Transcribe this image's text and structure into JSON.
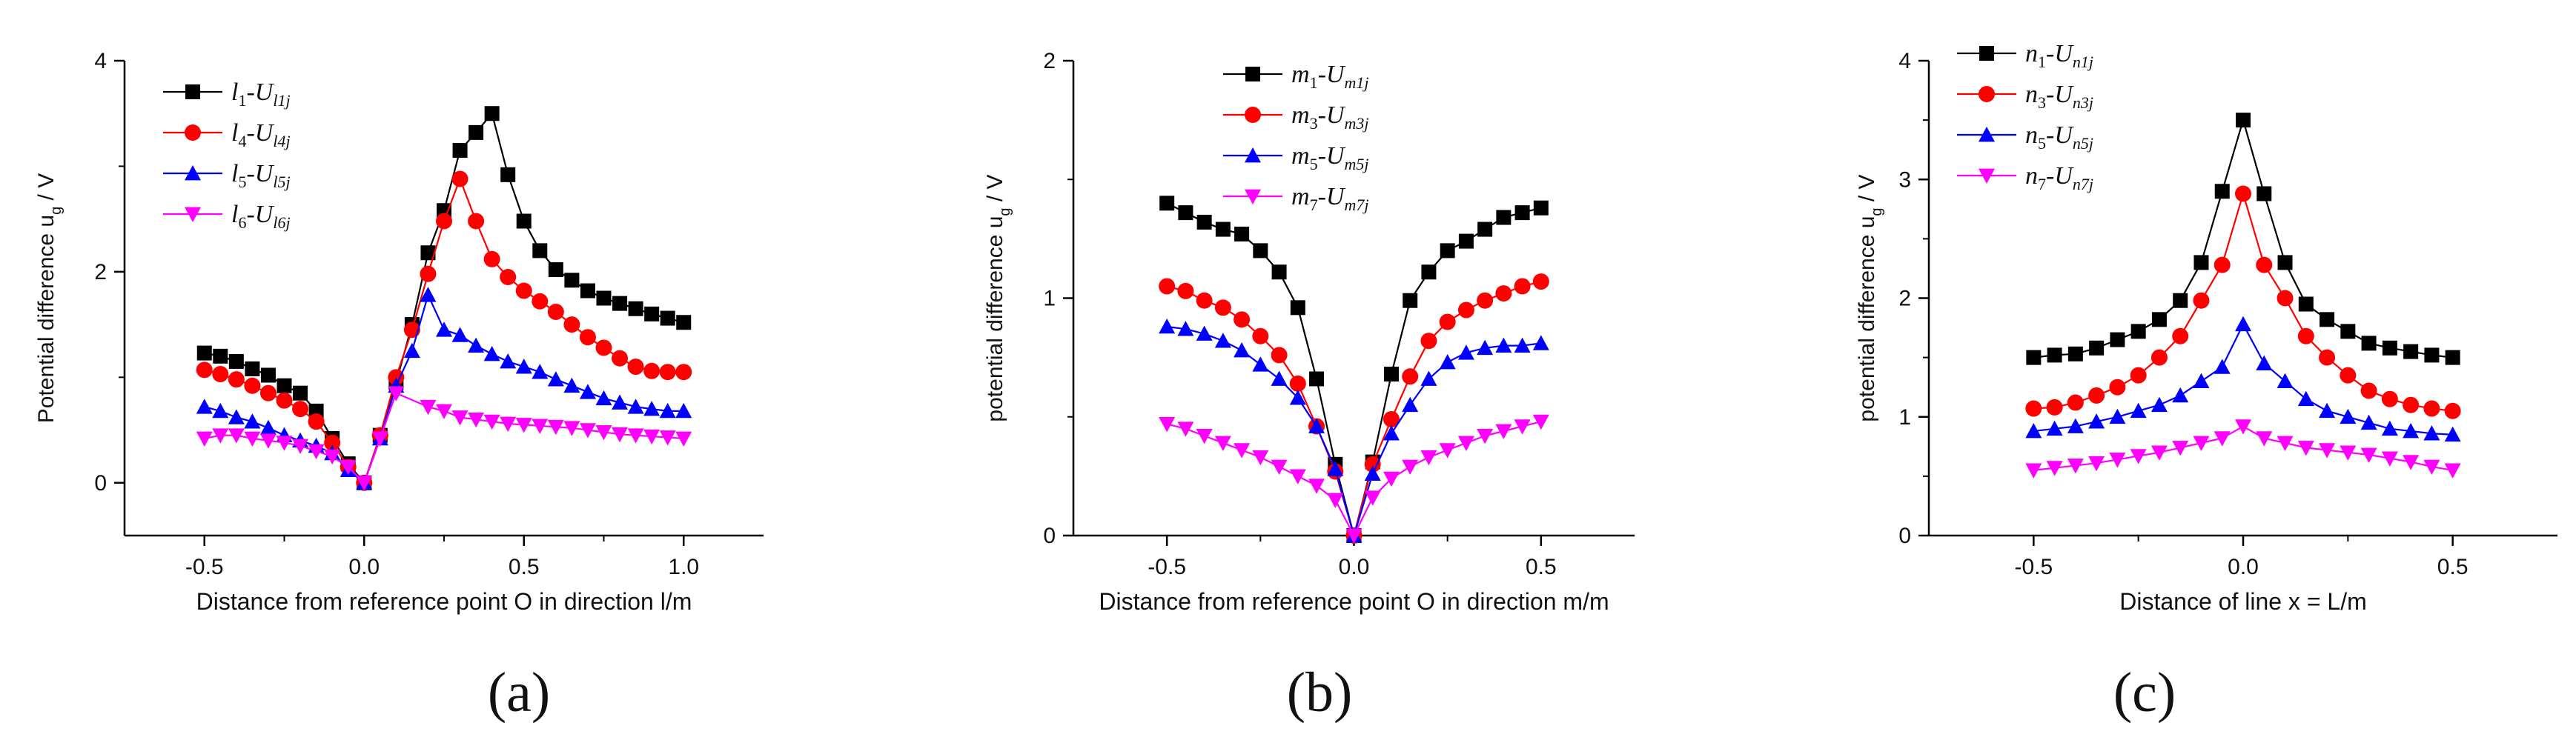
{
  "colors": {
    "black": "#000000",
    "red": "#ff0000",
    "blue": "#0000ff",
    "magenta": "#ff00ff"
  },
  "chart_data": [
    {
      "type": "line",
      "panel_label": "(a)",
      "xlabel": "Distance from reference point O in direction l/m",
      "ylabel": "Potential difference u",
      "ylabel_sub": "g",
      "ylabel_unit": " / V",
      "xlim": [
        -0.75,
        1.25
      ],
      "ylim": [
        -0.5,
        4
      ],
      "xticks": [
        -0.5,
        0.0,
        0.5,
        1.0
      ],
      "xtick_labels": [
        "-0.5",
        "0.0",
        "0.5",
        "1.0"
      ],
      "yticks": [
        0,
        2,
        4
      ],
      "ytick_labels": [
        "0",
        "2",
        "4"
      ],
      "x": [
        -0.5,
        -0.45,
        -0.4,
        -0.35,
        -0.3,
        -0.25,
        -0.2,
        -0.15,
        -0.1,
        -0.05,
        0.0,
        0.05,
        0.1,
        0.15,
        0.2,
        0.25,
        0.3,
        0.35,
        0.4,
        0.45,
        0.5,
        0.55,
        0.6,
        0.65,
        0.7,
        0.75,
        0.8,
        0.85,
        0.9,
        0.95,
        1.0
      ],
      "series": [
        {
          "name": "l1-Ul1j",
          "legend_main": "l",
          "legend_sub1": "1",
          "legend_mid": "-U",
          "legend_sub2": "l1j",
          "color": "black",
          "marker": "square",
          "values": [
            1.23,
            1.2,
            1.15,
            1.08,
            1.02,
            0.92,
            0.85,
            0.68,
            0.42,
            0.18,
            0.0,
            0.45,
            0.95,
            1.5,
            2.18,
            2.58,
            3.15,
            3.32,
            3.5,
            2.92,
            2.48,
            2.2,
            2.02,
            1.92,
            1.82,
            1.75,
            1.7,
            1.65,
            1.6,
            1.56,
            1.52
          ]
        },
        {
          "name": "l4-Ul4j",
          "legend_main": "l",
          "legend_sub1": "4",
          "legend_mid": "-U",
          "legend_sub2": "l4j",
          "color": "red",
          "marker": "circle",
          "values": [
            1.07,
            1.03,
            0.98,
            0.92,
            0.85,
            0.78,
            0.7,
            0.58,
            0.38,
            0.15,
            0.0,
            0.45,
            1.0,
            1.45,
            1.98,
            2.48,
            2.88,
            2.48,
            2.12,
            1.95,
            1.82,
            1.72,
            1.62,
            1.5,
            1.38,
            1.28,
            1.18,
            1.1,
            1.06,
            1.05,
            1.05
          ]
        },
        {
          "name": "l5-Ul5j",
          "legend_main": "l",
          "legend_sub1": "5",
          "legend_mid": "-U",
          "legend_sub2": "l5j",
          "color": "blue",
          "marker": "triangle-up",
          "values": [
            0.72,
            0.68,
            0.62,
            0.58,
            0.52,
            0.45,
            0.4,
            0.35,
            0.28,
            0.12,
            0.0,
            0.42,
            0.92,
            1.25,
            1.78,
            1.45,
            1.4,
            1.3,
            1.22,
            1.15,
            1.1,
            1.05,
            0.98,
            0.92,
            0.86,
            0.8,
            0.76,
            0.72,
            0.7,
            0.68,
            0.68
          ]
        },
        {
          "name": "l6-Ul6j",
          "legend_main": "l",
          "legend_sub1": "6",
          "legend_mid": "-U",
          "legend_sub2": "l6j",
          "color": "magenta",
          "marker": "triangle-down",
          "values": [
            0.42,
            0.45,
            0.45,
            0.42,
            0.4,
            0.38,
            0.35,
            0.3,
            0.25,
            0.15,
            0.0,
            0.42,
            0.85,
            null,
            0.72,
            0.68,
            0.62,
            0.6,
            0.58,
            0.56,
            0.55,
            0.54,
            0.53,
            0.52,
            0.5,
            0.48,
            0.46,
            0.45,
            0.44,
            0.43,
            0.42
          ]
        }
      ]
    },
    {
      "type": "line",
      "panel_label": "(b)",
      "xlabel": "Distance from reference point O in direction m/m",
      "ylabel": "potential difference u",
      "ylabel_sub": "g",
      "ylabel_unit": " / V",
      "xlim": [
        -0.75,
        0.75
      ],
      "ylim": [
        0,
        2
      ],
      "xticks": [
        -0.5,
        0.0,
        0.5
      ],
      "xtick_labels": [
        "-0.5",
        "0.0",
        "0.5"
      ],
      "yticks": [
        0,
        1,
        2
      ],
      "ytick_labels": [
        "0",
        "1",
        "2"
      ],
      "x": [
        -0.5,
        -0.45,
        -0.4,
        -0.35,
        -0.3,
        -0.25,
        -0.2,
        -0.15,
        -0.1,
        -0.05,
        0.0,
        0.05,
        0.1,
        0.15,
        0.2,
        0.25,
        0.3,
        0.35,
        0.4,
        0.45,
        0.5
      ],
      "series": [
        {
          "name": "m1-Um1j",
          "legend_main": "m",
          "legend_sub1": "1",
          "legend_mid": "-U",
          "legend_sub2": "m1j",
          "color": "black",
          "marker": "square",
          "values": [
            1.4,
            1.36,
            1.32,
            1.29,
            1.27,
            1.2,
            1.11,
            0.96,
            0.66,
            0.3,
            0.0,
            0.31,
            0.68,
            0.99,
            1.11,
            1.2,
            1.24,
            1.29,
            1.34,
            1.36,
            1.38
          ]
        },
        {
          "name": "m3-Um3j",
          "legend_main": "m",
          "legend_sub1": "3",
          "legend_mid": "-U",
          "legend_sub2": "m3j",
          "color": "red",
          "marker": "circle",
          "values": [
            1.05,
            1.03,
            0.99,
            0.96,
            0.91,
            0.84,
            0.76,
            0.64,
            0.46,
            0.27,
            0.0,
            0.3,
            0.49,
            0.67,
            0.82,
            0.9,
            0.95,
            0.99,
            1.02,
            1.05,
            1.07
          ]
        },
        {
          "name": "m5-Um5j",
          "legend_main": "m",
          "legend_sub1": "5",
          "legend_mid": "-U",
          "legend_sub2": "m5j",
          "color": "blue",
          "marker": "triangle-up",
          "values": [
            0.88,
            0.87,
            0.85,
            0.82,
            0.78,
            0.72,
            0.66,
            0.58,
            0.46,
            0.28,
            0.0,
            0.26,
            0.43,
            0.55,
            0.66,
            0.73,
            0.77,
            0.79,
            0.8,
            0.8,
            0.81
          ]
        },
        {
          "name": "m7-Um7j",
          "legend_main": "m",
          "legend_sub1": "7",
          "legend_mid": "-U",
          "legend_sub2": "m7j",
          "color": "magenta",
          "marker": "triangle-down",
          "values": [
            0.47,
            0.45,
            0.42,
            0.39,
            0.36,
            0.33,
            0.29,
            0.25,
            0.21,
            0.15,
            0.0,
            0.16,
            0.24,
            0.29,
            0.33,
            0.36,
            0.39,
            0.42,
            0.44,
            0.46,
            0.48
          ]
        }
      ]
    },
    {
      "type": "line",
      "panel_label": "(c)",
      "xlabel": "Distance of line x = L/m",
      "ylabel": "potential difference u",
      "ylabel_sub": "g",
      "ylabel_unit": " / V",
      "xlim": [
        -0.75,
        0.75
      ],
      "ylim": [
        0,
        4
      ],
      "xticks": [
        -0.5,
        0.0,
        0.5
      ],
      "xtick_labels": [
        "-0.5",
        "0.0",
        "0.5"
      ],
      "yticks": [
        0,
        1,
        2,
        3,
        4
      ],
      "ytick_labels": [
        "0",
        "1",
        "2",
        "3",
        "4"
      ],
      "x": [
        -0.5,
        -0.45,
        -0.4,
        -0.35,
        -0.3,
        -0.25,
        -0.2,
        -0.15,
        -0.1,
        -0.05,
        0.0,
        0.05,
        0.1,
        0.15,
        0.2,
        0.25,
        0.3,
        0.35,
        0.4,
        0.45,
        0.5
      ],
      "series": [
        {
          "name": "n1-Un1j",
          "legend_main": "n",
          "legend_sub1": "1",
          "legend_mid": "-U",
          "legend_sub2": "n1j",
          "color": "black",
          "marker": "square",
          "values": [
            1.5,
            1.52,
            1.53,
            1.58,
            1.65,
            1.72,
            1.82,
            1.98,
            2.3,
            2.9,
            3.5,
            2.88,
            2.3,
            1.95,
            1.82,
            1.72,
            1.62,
            1.58,
            1.55,
            1.52,
            1.5
          ]
        },
        {
          "name": "n3-Un3j",
          "legend_main": "n",
          "legend_sub1": "3",
          "legend_mid": "-U",
          "legend_sub2": "n3j",
          "color": "red",
          "marker": "circle",
          "values": [
            1.07,
            1.08,
            1.12,
            1.18,
            1.25,
            1.35,
            1.5,
            1.68,
            1.98,
            2.28,
            2.88,
            2.28,
            2.0,
            1.68,
            1.5,
            1.35,
            1.22,
            1.15,
            1.1,
            1.07,
            1.05
          ]
        },
        {
          "name": "n5-Un5j",
          "legend_main": "n",
          "legend_sub1": "5",
          "legend_mid": "-U",
          "legend_sub2": "n5j",
          "color": "blue",
          "marker": "triangle-up",
          "values": [
            0.88,
            0.9,
            0.92,
            0.96,
            1.0,
            1.05,
            1.1,
            1.18,
            1.3,
            1.42,
            1.78,
            1.45,
            1.3,
            1.15,
            1.05,
            1.0,
            0.95,
            0.9,
            0.88,
            0.86,
            0.85
          ]
        },
        {
          "name": "n7-Un7j",
          "legend_main": "n",
          "legend_sub1": "7",
          "legend_mid": "-U",
          "legend_sub2": "n7j",
          "color": "magenta",
          "marker": "triangle-down",
          "values": [
            0.55,
            0.57,
            0.59,
            0.61,
            0.64,
            0.67,
            0.7,
            0.74,
            0.78,
            0.82,
            0.92,
            0.82,
            0.78,
            0.74,
            0.72,
            0.7,
            0.68,
            0.65,
            0.62,
            0.58,
            0.55
          ]
        }
      ]
    }
  ]
}
